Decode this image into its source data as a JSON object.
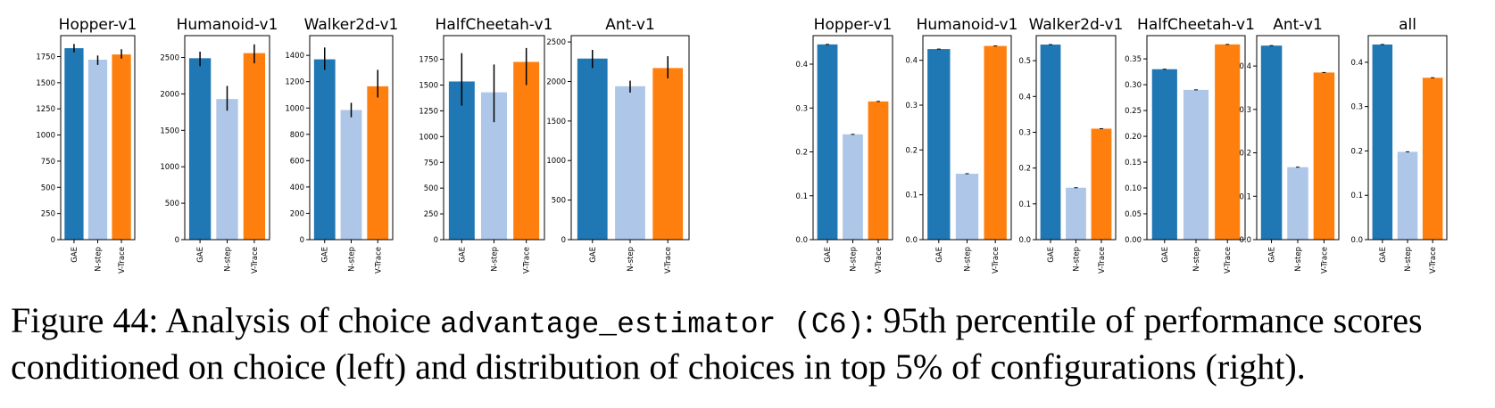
{
  "colors": {
    "GAE": "#1f77b4",
    "N-step": "#aec7e8",
    "V-Trace": "#ff7f0e"
  },
  "chart_data": [
    {
      "type": "bar",
      "title": "Hopper-v1",
      "categories": [
        "GAE",
        "N-step",
        "V-Trace"
      ],
      "values": [
        1830,
        1720,
        1770
      ],
      "errors": [
        [
          1790,
          1870
        ],
        [
          1670,
          1760
        ],
        [
          1730,
          1820
        ]
      ],
      "ylim": [
        0,
        1950
      ],
      "yticks": [
        "0",
        "250",
        "500",
        "750",
        "1000",
        "1250",
        "1500",
        "1750"
      ]
    },
    {
      "type": "bar",
      "title": "Humanoid-v1",
      "categories": [
        "GAE",
        "N-step",
        "V-Trace"
      ],
      "values": [
        2490,
        1930,
        2560
      ],
      "errors": [
        [
          2380,
          2580
        ],
        [
          1770,
          2110
        ],
        [
          2420,
          2680
        ]
      ],
      "ylim": [
        0,
        2800
      ],
      "yticks": [
        "0",
        "500",
        "1000",
        "1500",
        "2000",
        "2500"
      ]
    },
    {
      "type": "bar",
      "title": "Walker2d-v1",
      "categories": [
        "GAE",
        "N-step",
        "V-Trace"
      ],
      "values": [
        1370,
        985,
        1165
      ],
      "errors": [
        [
          1290,
          1460
        ],
        [
          930,
          1040
        ],
        [
          1080,
          1290
        ]
      ],
      "ylim": [
        0,
        1550
      ],
      "yticks": [
        "0",
        "200",
        "400",
        "600",
        "800",
        "1000",
        "1200",
        "1400"
      ]
    },
    {
      "type": "bar",
      "title": "HalfCheetah-v1",
      "categories": [
        "GAE",
        "N-step",
        "V-Trace"
      ],
      "values": [
        1535,
        1430,
        1725
      ],
      "errors": [
        [
          1300,
          1810
        ],
        [
          1140,
          1700
        ],
        [
          1500,
          1860
        ]
      ],
      "ylim": [
        0,
        1980
      ],
      "yticks": [
        "0",
        "250",
        "500",
        "750",
        "1000",
        "1250",
        "1500",
        "1750"
      ]
    },
    {
      "type": "bar",
      "title": "Ant-v1",
      "categories": [
        "GAE",
        "N-step",
        "V-Trace"
      ],
      "values": [
        2290,
        1940,
        2170
      ],
      "errors": [
        [
          2170,
          2400
        ],
        [
          1860,
          2010
        ],
        [
          2040,
          2320
        ]
      ],
      "ylim": [
        0,
        2580
      ],
      "yticks": [
        "0",
        "500",
        "1000",
        "1500",
        "2000",
        "2500"
      ]
    },
    {
      "type": "bar",
      "title": "Hopper-v1",
      "categories": [
        "GAE",
        "N-step",
        "V-Trace"
      ],
      "values": [
        0.445,
        0.24,
        0.315
      ],
      "ylim": [
        0,
        0.465
      ],
      "yticks": [
        "0.0",
        "0.1",
        "0.2",
        "0.3",
        "0.4"
      ]
    },
    {
      "type": "bar",
      "title": "Humanoid-v1",
      "categories": [
        "GAE",
        "N-step",
        "V-Trace"
      ],
      "values": [
        0.425,
        0.147,
        0.432
      ],
      "ylim": [
        0,
        0.455
      ],
      "yticks": [
        "0.0",
        "0.1",
        "0.2",
        "0.3",
        "0.4"
      ]
    },
    {
      "type": "bar",
      "title": "Walker2d-v1",
      "categories": [
        "GAE",
        "N-step",
        "V-Trace"
      ],
      "values": [
        0.545,
        0.145,
        0.31
      ],
      "ylim": [
        0,
        0.57
      ],
      "yticks": [
        "0.0",
        "0.1",
        "0.2",
        "0.3",
        "0.4",
        "0.5"
      ]
    },
    {
      "type": "bar",
      "title": "HalfCheetah-v1",
      "categories": [
        "GAE",
        "N-step",
        "V-Trace"
      ],
      "values": [
        0.33,
        0.29,
        0.378
      ],
      "ylim": [
        0,
        0.395
      ],
      "yticks": [
        "0.00",
        "0.05",
        "0.10",
        "0.15",
        "0.20",
        "0.25",
        "0.30",
        "0.35"
      ]
    },
    {
      "type": "bar",
      "title": "Ant-v1",
      "categories": [
        "GAE",
        "N-step",
        "V-Trace"
      ],
      "values": [
        0.447,
        0.167,
        0.385
      ],
      "ylim": [
        0,
        0.47
      ],
      "yticks": [
        "0.0",
        "0.1",
        "0.2",
        "0.3",
        "0.4"
      ]
    },
    {
      "type": "bar",
      "title": "all",
      "categories": [
        "GAE",
        "N-step",
        "V-Trace"
      ],
      "values": [
        0.44,
        0.198,
        0.365
      ],
      "ylim": [
        0,
        0.46
      ],
      "yticks": [
        "0.0",
        "0.1",
        "0.2",
        "0.3",
        "0.4"
      ]
    }
  ],
  "caption": {
    "part1": "Figure 44: Analysis of choice ",
    "code": "advantage_estimator (C6)",
    "part2": ": 95th percentile of performance scores",
    "line2": "conditioned on choice (left) and distribution of choices in top 5% of configurations (right)."
  }
}
